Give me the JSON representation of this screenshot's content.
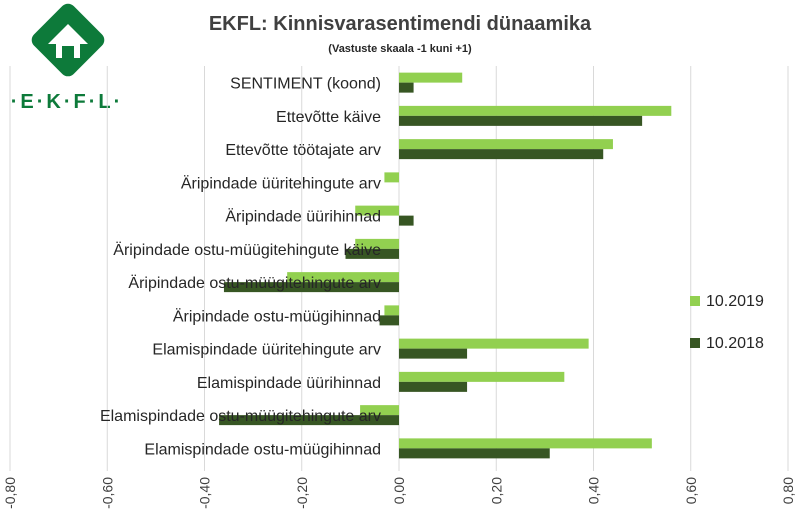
{
  "logo": {
    "text": "·E·K·F·L·"
  },
  "chart_data": {
    "type": "bar",
    "orientation": "horizontal",
    "title": "EKFL: Kinnisvarasentimendi dünaamika",
    "subtitle": "(Vastuste skaala -1 kuni +1)",
    "categories": [
      "SENTIMENT (koond)",
      "Ettevõtte käive",
      "Ettevõtte töötajate arv",
      "Äripindade üüritehingute arv",
      "Äripindade üürihinnad",
      "Äripindade ostu-müügitehingute käive",
      "Äripindade ostu-müügitehingute arv",
      "Äripindade ostu-müügihinnad",
      "Elamispindade üüritehingute arv",
      "Elamispindade üürihinnad",
      "Elamispindade ostu-müügitehingute arv",
      "Elamispindade ostu-müügihinnad"
    ],
    "series": [
      {
        "name": "10.2019",
        "color": "#92d050",
        "values": [
          0.13,
          0.56,
          0.44,
          -0.03,
          -0.09,
          -0.09,
          -0.23,
          -0.03,
          0.39,
          0.34,
          -0.08,
          0.52
        ]
      },
      {
        "name": "10.2018",
        "color": "#375623",
        "values": [
          0.03,
          0.5,
          0.42,
          0.0,
          0.03,
          -0.11,
          -0.36,
          -0.04,
          0.14,
          0.14,
          -0.37,
          0.31
        ]
      }
    ],
    "xlim": [
      -0.8,
      0.8
    ],
    "xticks": [
      "-0,80",
      "-0,60",
      "-0,40",
      "-0,20",
      "0,00",
      "0,20",
      "0,40",
      "0,60",
      "0,80"
    ],
    "grid": true,
    "legend": "right"
  }
}
